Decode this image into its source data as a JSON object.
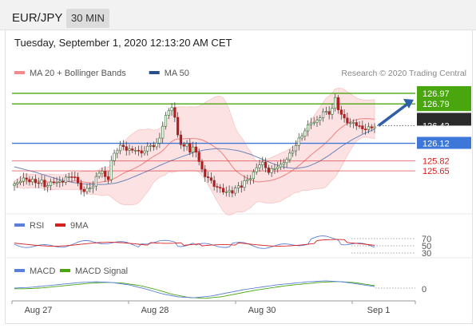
{
  "header": {
    "symbol": "EUR/JPY",
    "timeframe": "30 MIN"
  },
  "datetime": "Tuesday, September 1, 2020 12:13:20 AM CET",
  "legend": {
    "main": [
      {
        "name": "MA 20 + Bollinger Bands",
        "color": "#f08c8c"
      },
      {
        "name": "MA 50",
        "color": "#2a4f8f"
      }
    ],
    "rsi": [
      {
        "name": "RSI",
        "color": "#5b7fd6"
      },
      {
        "name": "9MA",
        "color": "#d62020"
      }
    ],
    "macd": [
      {
        "name": "MACD",
        "color": "#5b7fd6"
      },
      {
        "name": "MACD Signal",
        "color": "#4aa60f"
      }
    ]
  },
  "copyright": "Research © 2020 Trading Central",
  "chart_data": {
    "type": "candlestick",
    "x_ticks": [
      "Aug 27",
      "Aug 28",
      "Aug 30",
      "Sep 1"
    ],
    "y_range": [
      125.0,
      127.2
    ],
    "current_price": {
      "label": "126.42",
      "value": 126.42,
      "color": "#2b2b2b"
    },
    "levels": [
      {
        "label": "126.97",
        "value": 126.97,
        "kind": "resistance",
        "color": "#4aa60f"
      },
      {
        "label": "126.79",
        "value": 126.79,
        "kind": "resistance",
        "color": "#4aa60f"
      },
      {
        "label": "126.12",
        "value": 126.12,
        "kind": "pivot",
        "color": "#3d78d8"
      },
      {
        "label": "125.82",
        "value": 125.82,
        "kind": "support",
        "color": "#d62020"
      },
      {
        "label": "125.65",
        "value": 125.65,
        "kind": "support",
        "color": "#d62020"
      }
    ],
    "price_path": [
      125.4,
      125.46,
      125.44,
      125.48,
      125.42,
      125.47,
      125.45,
      125.5,
      125.43,
      125.47,
      125.52,
      125.46,
      125.44,
      125.5,
      125.48,
      125.55,
      125.42,
      125.36,
      125.28,
      125.45,
      125.4,
      125.62,
      125.7,
      125.55,
      125.5,
      125.85,
      125.95,
      126.02,
      126.05,
      126.0,
      126.04,
      126.07,
      125.99,
      126.03,
      126.05,
      126.1,
      126.0,
      126.15,
      126.4,
      126.6,
      126.78,
      126.55,
      126.25,
      126.05,
      126.2,
      125.95,
      126.1,
      125.8,
      125.6,
      125.5,
      125.45,
      125.4,
      125.35,
      125.38,
      125.32,
      125.36,
      125.33,
      125.4,
      125.38,
      125.44,
      125.47,
      125.55,
      125.7,
      125.8,
      125.75,
      125.68,
      125.72,
      125.78,
      125.75,
      125.82,
      125.85,
      125.95,
      126.05,
      126.18,
      126.3,
      126.42,
      126.55,
      126.5,
      126.62,
      126.7,
      126.63,
      126.65,
      126.85,
      126.6,
      126.5,
      126.47,
      126.44,
      126.5,
      126.45,
      126.4,
      126.44,
      126.38,
      126.42
    ],
    "ma50_path": [
      125.72,
      125.67,
      125.62,
      125.56,
      125.5,
      125.46,
      125.43,
      125.42,
      125.42,
      125.44,
      125.5,
      125.58,
      125.66,
      125.75,
      125.83,
      125.9,
      125.97,
      126.01,
      126.03,
      126.02,
      125.99,
      125.93,
      125.85,
      125.77,
      125.71,
      125.69,
      125.72,
      125.8,
      125.92,
      126.06,
      126.18,
      126.28,
      126.36
    ],
    "forecast_arrow": {
      "from": 126.42,
      "to": 126.97
    },
    "rsi": {
      "levels": [
        "70",
        "50",
        "30"
      ]
    },
    "macd": {
      "levels": [
        "0"
      ]
    }
  }
}
